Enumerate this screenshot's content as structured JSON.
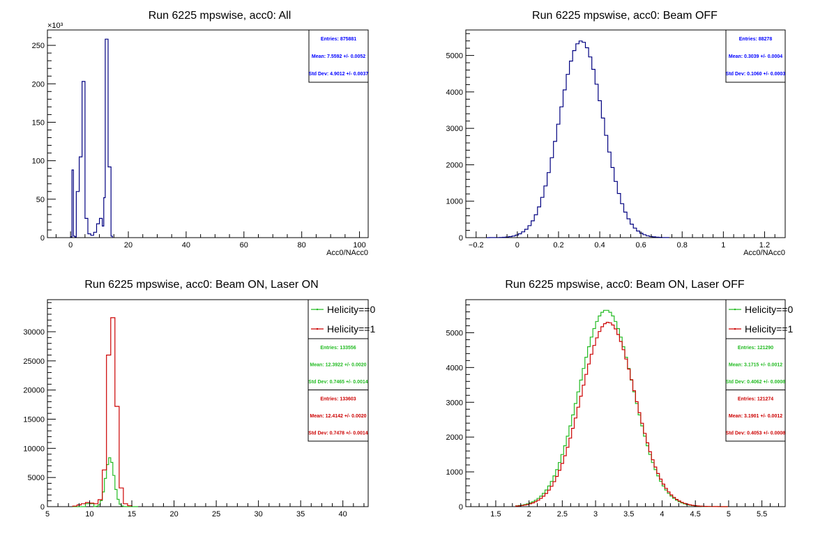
{
  "chart_data": [
    {
      "type": "histogram",
      "title": "Run 6225 mpswise, acc0: All",
      "xlabel": "Acc0/NAcc0",
      "ylabel": "",
      "xlim": [
        -8,
        103
      ],
      "ylim": [
        0,
        270000
      ],
      "x_ticks": [
        0,
        20,
        40,
        60,
        80,
        100
      ],
      "x_tick_labels": [
        "0",
        "20",
        "40",
        "60",
        "80",
        "100"
      ],
      "y_ticks": [
        0,
        50000,
        100000,
        150000,
        200000,
        250000
      ],
      "y_tick_labels": [
        "0",
        "50",
        "100",
        "150",
        "200",
        "250"
      ],
      "y_exponent": "×10³",
      "series": [
        {
          "color": "#000080",
          "bins": [
            [
              0,
              1000
            ],
            [
              0.5,
              88000
            ],
            [
              1,
              2000
            ],
            [
              1.5,
              1000
            ],
            [
              2,
              60000
            ],
            [
              3,
              105000
            ],
            [
              4,
              203000
            ],
            [
              5,
              25000
            ],
            [
              6,
              5000
            ],
            [
              7,
              3000
            ],
            [
              8,
              7000
            ],
            [
              9,
              18000
            ],
            [
              10,
              25000
            ],
            [
              11,
              15000
            ],
            [
              11.5,
              52000
            ],
            [
              12,
              258000
            ],
            [
              13,
              92000
            ],
            [
              14,
              2000
            ],
            [
              14.5,
              0
            ]
          ]
        }
      ],
      "stats": [
        {
          "color": "#0000ff",
          "entries": "Entries: 875881",
          "mean": "Mean: 7.5592 +/- 0.0052",
          "std": "Std Dev: 4.9012 +/- 0.0037"
        }
      ],
      "legend": []
    },
    {
      "type": "histogram",
      "title": "Run 6225 mpswise, acc0: Beam OFF",
      "xlabel": "Acc0/NAcc0",
      "ylabel": "",
      "xlim": [
        -0.25,
        1.3
      ],
      "ylim": [
        0,
        5700
      ],
      "x_ticks": [
        -0.2,
        0,
        0.2,
        0.4,
        0.6,
        0.8,
        1,
        1.2
      ],
      "x_tick_labels": [
        "−0.2",
        "0",
        "0.2",
        "0.4",
        "0.6",
        "0.8",
        "1",
        "1.2"
      ],
      "y_ticks": [
        0,
        1000,
        2000,
        3000,
        4000,
        5000
      ],
      "y_tick_labels": [
        "0",
        "1000",
        "2000",
        "3000",
        "4000",
        "5000"
      ],
      "y_exponent": "",
      "series": [
        {
          "color": "#000080",
          "gauss": {
            "mean": 0.31,
            "sigma": 0.106,
            "peak": 5400,
            "lo": -0.15,
            "hi": 0.72,
            "step": 0.0155
          }
        }
      ],
      "stats": [
        {
          "color": "#0000ff",
          "entries": "Entries: 88278",
          "mean": "Mean: 0.3039 +/- 0.0004",
          "std": "Std Dev: 0.1060 +/- 0.0003"
        }
      ],
      "legend": []
    },
    {
      "type": "histogram",
      "title": "Run 6225 mpswise, acc0: Beam ON, Laser ON",
      "xlabel": "",
      "ylabel": "",
      "xlim": [
        5,
        43
      ],
      "ylim": [
        0,
        35500
      ],
      "x_ticks": [
        5,
        10,
        15,
        20,
        25,
        30,
        35,
        40
      ],
      "x_tick_labels": [
        "5",
        "10",
        "15",
        "20",
        "25",
        "30",
        "35",
        "40"
      ],
      "y_ticks": [
        0,
        5000,
        10000,
        15000,
        20000,
        25000,
        30000
      ],
      "y_tick_labels": [
        "0",
        "5000",
        "10000",
        "15000",
        "20000",
        "25000",
        "30000"
      ],
      "y_exponent": "",
      "series": [
        {
          "name": "Helicity==0",
          "color": "#22bb22",
          "gauss": {
            "mean": 12.4,
            "sigma": 0.5,
            "peak": 8400,
            "lo": 8,
            "hi": 15.5,
            "step": 0.25
          },
          "extra": [
            [
              9.5,
              10.5,
              500
            ]
          ]
        },
        {
          "name": "Helicity==1",
          "color": "#cc0000",
          "bins": [
            [
              8,
              100
            ],
            [
              8.5,
              300
            ],
            [
              9,
              500
            ],
            [
              9.5,
              700
            ],
            [
              10,
              600
            ],
            [
              10.5,
              500
            ],
            [
              11,
              1200
            ],
            [
              11.5,
              6300
            ],
            [
              12,
              26000
            ],
            [
              12.5,
              32400
            ],
            [
              13,
              17200
            ],
            [
              13.5,
              3200
            ],
            [
              14,
              500
            ],
            [
              14.5,
              150
            ],
            [
              15,
              0
            ]
          ]
        }
      ],
      "stats": [
        {
          "color": "#22bb22",
          "entries": "Entries: 133556",
          "mean": "Mean: 12.3922 +/- 0.0020",
          "std": "Std Dev: 0.7465 +/- 0.0014"
        },
        {
          "color": "#cc0000",
          "entries": "Entries: 133603",
          "mean": "Mean: 12.4142 +/- 0.0020",
          "std": "Std Dev: 0.7478 +/- 0.0014"
        }
      ],
      "legend": [
        {
          "label": "Helicity==0",
          "color": "#22bb22"
        },
        {
          "label": "Helicity==1",
          "color": "#cc0000"
        }
      ]
    },
    {
      "type": "histogram",
      "title": "Run 6225 mpswise, acc0: Beam ON, Laser OFF",
      "xlabel": "",
      "ylabel": "",
      "xlim": [
        1.05,
        5.85
      ],
      "ylim": [
        0,
        5950
      ],
      "x_ticks": [
        1.5,
        2,
        2.5,
        3,
        3.5,
        4,
        4.5,
        5,
        5.5
      ],
      "x_tick_labels": [
        "1.5",
        "2",
        "2.5",
        "3",
        "3.5",
        "4",
        "4.5",
        "5",
        "5.5"
      ],
      "y_ticks": [
        0,
        1000,
        2000,
        3000,
        4000,
        5000
      ],
      "y_tick_labels": [
        "0",
        "1000",
        "2000",
        "3000",
        "4000",
        "5000"
      ],
      "y_exponent": "",
      "series": [
        {
          "name": "Helicity==0",
          "color": "#22bb22",
          "gauss": {
            "mean": 3.16,
            "sigma": 0.405,
            "peak": 5650,
            "lo": 1.8,
            "hi": 4.95,
            "step": 0.04
          }
        },
        {
          "name": "Helicity==1",
          "color": "#cc0000",
          "gauss": {
            "mean": 3.19,
            "sigma": 0.405,
            "peak": 5300,
            "lo": 1.8,
            "hi": 4.95,
            "step": 0.04
          }
        }
      ],
      "stats": [
        {
          "color": "#22bb22",
          "entries": "Entries: 121290",
          "mean": "Mean: 3.1715 +/- 0.0012",
          "std": "Std Dev: 0.4062 +/- 0.0008"
        },
        {
          "color": "#cc0000",
          "entries": "Entries: 121274",
          "mean": "Mean: 3.1901 +/- 0.0012",
          "std": "Std Dev: 0.4053 +/- 0.0008"
        }
      ],
      "legend": [
        {
          "label": "Helicity==0",
          "color": "#22bb22"
        },
        {
          "label": "Helicity==1",
          "color": "#cc0000"
        }
      ]
    }
  ]
}
